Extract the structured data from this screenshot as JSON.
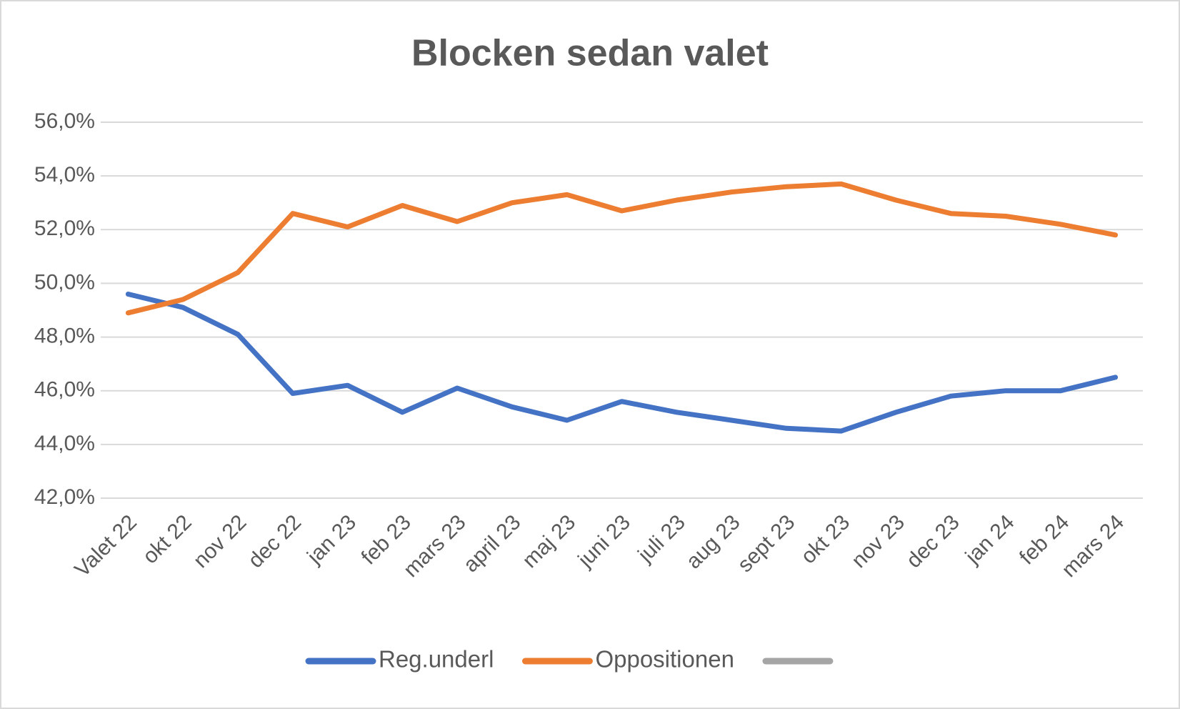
{
  "chart_data": {
    "type": "line",
    "title": "Blocken sedan valet",
    "categories": [
      "Valet 22",
      "okt 22",
      "nov 22",
      "dec 22",
      "jan 23",
      "feb 23",
      "mars 23",
      "april 23",
      "maj 23",
      "juni 23",
      "juli 23",
      "aug 23",
      "sept 23",
      "okt 23",
      "nov 23",
      "dec 23",
      "jan 24",
      "feb 24",
      "mars 24"
    ],
    "series": [
      {
        "name": "Reg.underl",
        "color": "#4472c4",
        "values": [
          49.6,
          49.1,
          48.1,
          45.9,
          46.2,
          45.2,
          46.1,
          45.4,
          44.9,
          45.6,
          45.2,
          44.9,
          44.6,
          44.5,
          45.2,
          45.8,
          46.0,
          46.0,
          46.5
        ]
      },
      {
        "name": "Oppositionen",
        "color": "#ed7d31",
        "values": [
          48.9,
          49.4,
          50.4,
          52.6,
          52.1,
          52.9,
          52.3,
          53.0,
          53.3,
          52.7,
          53.1,
          53.4,
          53.6,
          53.7,
          53.1,
          52.6,
          52.5,
          52.2,
          51.8
        ]
      },
      {
        "color": "#a5a5a5",
        "values": [
          null,
          null,
          null,
          null,
          null,
          null,
          null,
          null,
          null,
          null,
          null,
          null,
          null,
          null,
          null,
          null,
          null,
          null,
          null
        ]
      }
    ],
    "ylim": [
      42,
      56
    ],
    "yticks": [
      {
        "value": 42,
        "label": "42,0%"
      },
      {
        "value": 44,
        "label": "44,0%"
      },
      {
        "value": 46,
        "label": "46,0%"
      },
      {
        "value": 48,
        "label": "48,0%"
      },
      {
        "value": 50,
        "label": "50,0%"
      },
      {
        "value": 52,
        "label": "52,0%"
      },
      {
        "value": 54,
        "label": "54,0%"
      },
      {
        "value": 56,
        "label": "56,0%"
      }
    ],
    "grid": true,
    "legend": "bottom"
  }
}
